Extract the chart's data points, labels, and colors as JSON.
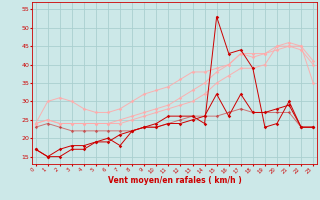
{
  "x": [
    0,
    1,
    2,
    3,
    4,
    5,
    6,
    7,
    8,
    9,
    10,
    11,
    12,
    13,
    14,
    15,
    16,
    17,
    18,
    19,
    20,
    21,
    22,
    23
  ],
  "line1": [
    17,
    15,
    17,
    18,
    18,
    19,
    20,
    18,
    22,
    23,
    23,
    24,
    24,
    25,
    26,
    32,
    26,
    32,
    27,
    27,
    28,
    29,
    23,
    23
  ],
  "line2": [
    23,
    24,
    23,
    22,
    22,
    22,
    22,
    22,
    22,
    23,
    23,
    24,
    25,
    26,
    26,
    26,
    27,
    28,
    27,
    27,
    27,
    27,
    23,
    23
  ],
  "line3": [
    24,
    30,
    31,
    30,
    28,
    27,
    27,
    28,
    30,
    32,
    33,
    34,
    36,
    38,
    38,
    39,
    40,
    43,
    43,
    43,
    44,
    45,
    44,
    40
  ],
  "line4": [
    24,
    25,
    24,
    24,
    24,
    24,
    24,
    24,
    25,
    26,
    27,
    28,
    29,
    30,
    32,
    35,
    37,
    39,
    39,
    40,
    45,
    45,
    45,
    35
  ],
  "line5": [
    24,
    25,
    24,
    24,
    24,
    24,
    24,
    25,
    26,
    27,
    28,
    29,
    31,
    33,
    35,
    38,
    40,
    43,
    42,
    43,
    45,
    46,
    45,
    41
  ],
  "line6": [
    17,
    15,
    15,
    17,
    17,
    19,
    19,
    21,
    22,
    23,
    24,
    26,
    26,
    26,
    24,
    53,
    43,
    44,
    39,
    23,
    24,
    30,
    23,
    23
  ],
  "bg_color": "#cce8e8",
  "grid_color": "#aacfcf",
  "xlabel": "Vent moyen/en rafales ( km/h )",
  "ylim": [
    13,
    57
  ],
  "yticks": [
    15,
    20,
    25,
    30,
    35,
    40,
    45,
    50,
    55
  ],
  "xticks": [
    0,
    1,
    2,
    3,
    4,
    5,
    6,
    7,
    8,
    9,
    10,
    11,
    12,
    13,
    14,
    15,
    16,
    17,
    18,
    19,
    20,
    21,
    22,
    23
  ]
}
